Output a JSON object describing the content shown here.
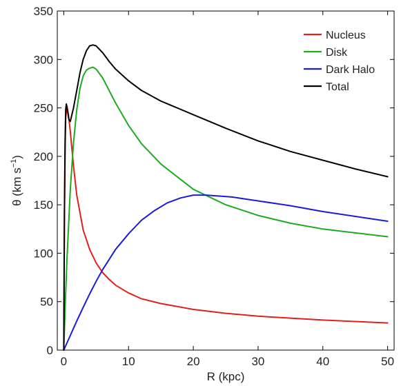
{
  "chart_data": {
    "type": "line",
    "xlabel": "R (kpc)",
    "ylabel_parts": [
      "θ (km s",
      "−1",
      ")"
    ],
    "xlim": [
      -1,
      51
    ],
    "ylim": [
      0,
      350
    ],
    "xticks": [
      0,
      10,
      20,
      30,
      40,
      50
    ],
    "yticks": [
      0,
      50,
      100,
      150,
      200,
      250,
      300,
      350
    ],
    "grid": false,
    "legend_position": "top-right",
    "series": [
      {
        "name": "Nucleus",
        "color": "#e0201b",
        "x": [
          0,
          0.1,
          0.2,
          0.3,
          0.5,
          0.7,
          1,
          1.5,
          2,
          3,
          4,
          5,
          6,
          7,
          8,
          10,
          12,
          15,
          20,
          25,
          30,
          35,
          40,
          45,
          50
        ],
        "y": [
          0,
          130,
          205,
          240,
          252,
          244,
          226,
          190,
          160,
          124,
          104,
          90,
          80,
          73,
          67,
          59,
          53,
          48,
          42,
          38,
          35,
          33,
          31,
          29.5,
          28
        ]
      },
      {
        "name": "Disk",
        "color": "#1aab1e",
        "x": [
          0,
          0.25,
          0.5,
          1,
          1.5,
          2,
          2.5,
          3,
          3.5,
          4,
          4.5,
          5,
          6,
          7,
          8,
          10,
          12,
          15,
          20,
          25,
          30,
          35,
          40,
          45,
          50
        ],
        "y": [
          0,
          50,
          95,
          165,
          214,
          248,
          270,
          283,
          289,
          291,
          292,
          290,
          281,
          268,
          255,
          232,
          213,
          192,
          166,
          150,
          139,
          131,
          125,
          121,
          117
        ]
      },
      {
        "name": "Dark Halo",
        "color": "#1a1ad8",
        "x": [
          0,
          1,
          2,
          3,
          4,
          5,
          6,
          8,
          10,
          12,
          14,
          16,
          18,
          20,
          22,
          24,
          26,
          28,
          30,
          35,
          40,
          45,
          50
        ],
        "y": [
          0,
          15,
          30,
          44,
          58,
          71,
          83,
          104,
          120,
          134,
          144,
          152,
          157,
          160,
          160,
          159,
          158,
          156,
          154,
          149,
          143,
          138,
          133
        ]
      },
      {
        "name": "Total",
        "color": "#000000",
        "x": [
          0,
          0.1,
          0.2,
          0.3,
          0.4,
          0.6,
          0.8,
          1,
          1.5,
          2,
          2.5,
          3,
          3.5,
          4,
          4.5,
          5,
          6,
          7,
          8,
          10,
          12,
          15,
          20,
          25,
          30,
          35,
          40,
          45,
          50
        ],
        "y": [
          0,
          140,
          215,
          248,
          254,
          246,
          238,
          236,
          250,
          268,
          286,
          300,
          309,
          314,
          315,
          314,
          307,
          298,
          290,
          278,
          268,
          257,
          243,
          229,
          216,
          205,
          196,
          187,
          179
        ]
      }
    ]
  }
}
